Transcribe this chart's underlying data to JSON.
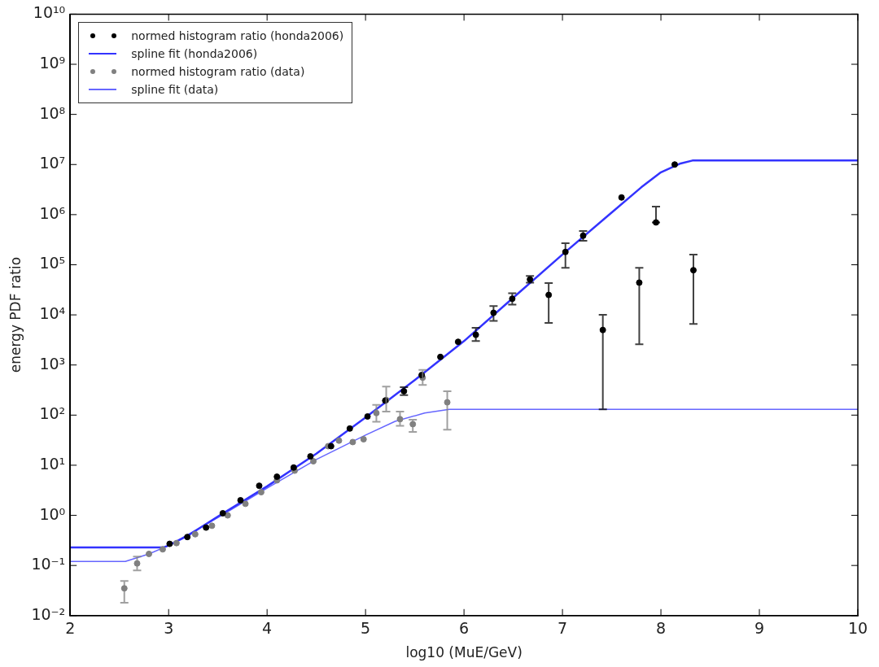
{
  "chart_data": {
    "type": "scatter",
    "xlabel": "log10 (MuE/GeV)",
    "ylabel": "energy PDF ratio",
    "log": "y",
    "grid": false,
    "legend": "top left",
    "marker": "circle",
    "xlim": [
      2,
      10
    ],
    "xticks": [
      2,
      3,
      4,
      5,
      6,
      7,
      8,
      9,
      10
    ],
    "ylim": [
      0.01,
      10000000000
    ],
    "yticks": [
      {
        "value": 0.01,
        "label": "10⁻²"
      },
      {
        "value": 0.1,
        "label": "10⁻¹"
      },
      {
        "value": 1,
        "label": "10⁰"
      },
      {
        "value": 10,
        "label": "10¹"
      },
      {
        "value": 100,
        "label": "10²"
      },
      {
        "value": 1000,
        "label": "10³"
      },
      {
        "value": 10000,
        "label": "10⁴"
      },
      {
        "value": 100000,
        "label": "10⁵"
      },
      {
        "value": 1000000,
        "label": "10⁶"
      },
      {
        "value": 10000000,
        "label": "10⁷"
      },
      {
        "value": 100000000,
        "label": "10⁸"
      },
      {
        "value": 1000000000,
        "label": "10⁹"
      },
      {
        "value": 10000000000,
        "label": "10¹⁰"
      }
    ],
    "series": [
      {
        "name": "normed histogram ratio (honda2006)",
        "color": "#000000",
        "x": [
          3.01,
          3.19,
          3.38,
          3.55,
          3.73,
          3.92,
          4.1,
          4.27,
          4.44,
          4.65,
          4.84,
          5.02,
          5.2,
          5.39,
          5.57,
          5.76,
          5.94,
          6.12,
          6.3,
          6.49,
          6.67,
          6.86,
          7.03,
          7.21,
          7.41,
          7.6,
          7.78,
          7.95,
          8.14,
          8.33
        ],
        "values": [
          0.27,
          0.37,
          0.57,
          1.1,
          2.0,
          3.9,
          5.9,
          9,
          15,
          24,
          54,
          94,
          195,
          300,
          630,
          1450,
          2900,
          4000,
          11000,
          21000,
          51000,
          25000,
          180000,
          380000,
          5000,
          2200000,
          44000,
          700000,
          10000000,
          78000
        ],
        "errors": [
          null,
          null,
          null,
          null,
          null,
          null,
          null,
          null,
          null,
          null,
          null,
          null,
          null,
          [
            250,
            360
          ],
          null,
          null,
          null,
          [
            3000,
            5500
          ],
          [
            7600,
            15000
          ],
          [
            16000,
            27000
          ],
          [
            44000,
            60000
          ],
          [
            6900,
            43000
          ],
          [
            87000,
            270000
          ],
          [
            300000,
            470000
          ],
          [
            130,
            10000
          ],
          null,
          [
            2600,
            87000
          ],
          [
            700000,
            1450000
          ],
          null,
          [
            6600,
            160000
          ]
        ]
      },
      {
        "name": "spline fit (honda2006)",
        "type": "line",
        "marker": "none",
        "color": "#3333ff",
        "x": [
          2,
          2.95,
          3.0,
          3.2,
          3.5,
          4,
          4.5,
          5,
          5.5,
          6,
          6.5,
          7,
          7.5,
          7.8,
          8.0,
          8.2,
          8.32,
          10
        ],
        "values": [
          0.23,
          0.23,
          0.25,
          0.4,
          0.95,
          3.8,
          17,
          90,
          500,
          3000,
          22000,
          160000,
          1100000,
          3500000,
          7000000,
          10500000,
          12000000,
          12000000
        ]
      },
      {
        "name": "normed histogram ratio (data)",
        "color": "#808080",
        "x": [
          2.55,
          2.68,
          2.8,
          2.94,
          3.08,
          3.27,
          3.44,
          3.6,
          3.78,
          3.94,
          4.1,
          4.28,
          4.47,
          4.62,
          4.73,
          4.87,
          4.98,
          5.11,
          5.21,
          5.35,
          5.48,
          5.58,
          5.83
        ],
        "values": [
          0.035,
          0.11,
          0.17,
          0.21,
          0.28,
          0.42,
          0.62,
          1.0,
          1.7,
          2.9,
          5,
          7.8,
          12,
          24,
          31,
          29,
          33,
          110,
          200,
          83,
          66,
          560,
          180
        ],
        "errors": [
          [
            0.018,
            0.049
          ],
          [
            0.08,
            0.15
          ],
          null,
          null,
          null,
          null,
          null,
          null,
          null,
          null,
          null,
          null,
          null,
          null,
          null,
          null,
          null,
          [
            74,
            160
          ],
          [
            118,
            370
          ],
          [
            61,
            118
          ],
          [
            46,
            81
          ],
          [
            400,
            800
          ],
          [
            51,
            300
          ]
        ]
      },
      {
        "name": "spline fit (data)",
        "type": "line",
        "marker": "none",
        "color": "#6666ff",
        "x": [
          2,
          2.56,
          2.8,
          3.0,
          3.5,
          4,
          4.5,
          5,
          5.3,
          5.6,
          5.85,
          10
        ],
        "values": [
          0.12,
          0.12,
          0.17,
          0.25,
          0.9,
          3.5,
          13,
          40,
          75,
          110,
          130,
          130
        ]
      }
    ]
  }
}
